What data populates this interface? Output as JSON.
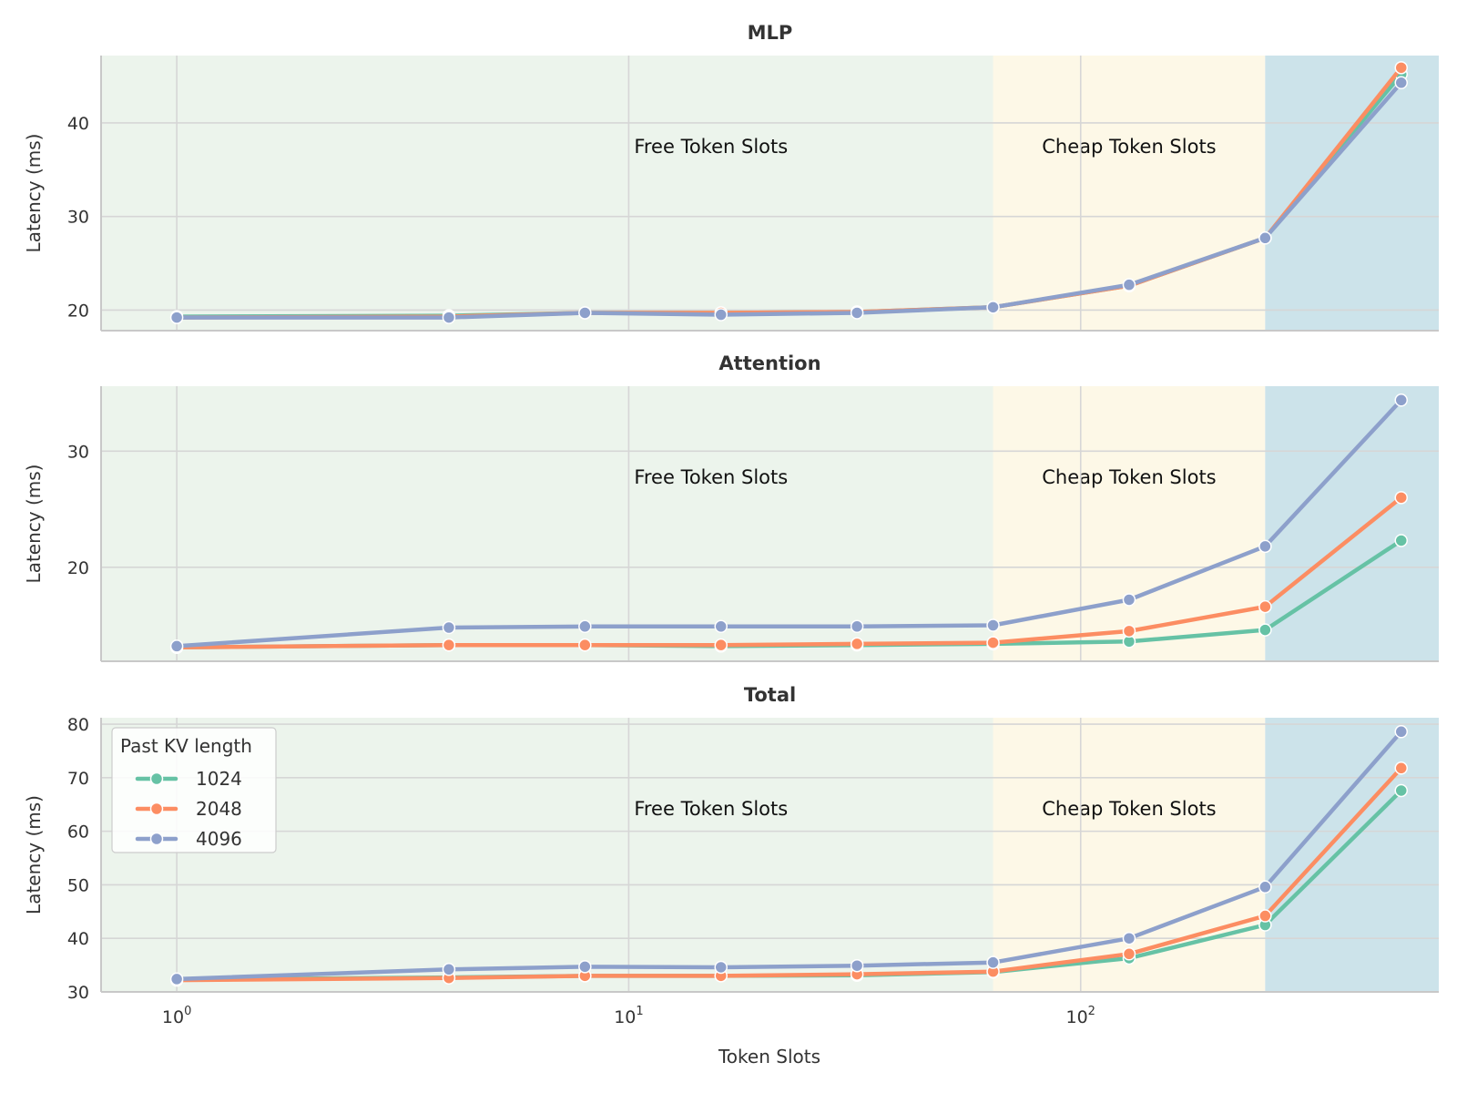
{
  "chart_data": {
    "type": "line",
    "xlabel": "Token Slots",
    "xscale": "log",
    "xlim": [
      0.68,
      620
    ],
    "x_ticks": [
      {
        "base": "10",
        "exp": "0",
        "value": 1
      },
      {
        "base": "10",
        "exp": "1",
        "value": 10
      },
      {
        "base": "10",
        "exp": "2",
        "value": 100
      }
    ],
    "x": [
      1,
      4,
      8,
      16,
      32,
      64,
      128,
      256,
      512
    ],
    "grid": true,
    "legend": {
      "title": "Past KV length",
      "placement": "top-left of Total panel"
    },
    "series_meta": [
      {
        "name": "1024",
        "color": "#66c2a5"
      },
      {
        "name": "2048",
        "color": "#fc8d62"
      },
      {
        "name": "4096",
        "color": "#8da0cb"
      }
    ],
    "regions": [
      {
        "label": "Free Token Slots",
        "from": 0.68,
        "to": 64,
        "color": "#ecf4ec"
      },
      {
        "label": "Cheap Token Slots",
        "from": 64,
        "to": 256,
        "color": "#fdf8e7"
      },
      {
        "label": "",
        "from": 256,
        "to": 620,
        "color": "#cce3ea"
      }
    ],
    "panels": [
      {
        "title": "MLP",
        "ylabel": "Latency (ms)",
        "ylim": [
          17.8,
          47.2
        ],
        "yticks": [
          20,
          30,
          40
        ],
        "series": [
          {
            "name": "1024",
            "values": [
              19.3,
              19.4,
              19.7,
              19.7,
              19.8,
              20.3,
              22.6,
              27.7,
              45.2
            ]
          },
          {
            "name": "2048",
            "values": [
              19.2,
              19.3,
              19.7,
              19.7,
              19.8,
              20.3,
              22.6,
              27.7,
              45.9
            ]
          },
          {
            "name": "4096",
            "values": [
              19.2,
              19.2,
              19.7,
              19.5,
              19.7,
              20.3,
              22.7,
              27.7,
              44.3
            ]
          }
        ]
      },
      {
        "title": "Attention",
        "ylabel": "Latency (ms)",
        "ylim": [
          11.9,
          35.6
        ],
        "yticks": [
          20,
          30
        ],
        "series": [
          {
            "name": "1024",
            "values": [
              13.1,
              13.3,
              13.3,
              13.2,
              13.3,
              13.4,
              13.6,
              14.6,
              22.3
            ]
          },
          {
            "name": "2048",
            "values": [
              13.1,
              13.3,
              13.3,
              13.3,
              13.4,
              13.5,
              14.5,
              16.6,
              26.0
            ]
          },
          {
            "name": "4096",
            "values": [
              13.2,
              14.8,
              14.9,
              14.9,
              14.9,
              15.0,
              17.2,
              21.8,
              34.4
            ]
          }
        ]
      },
      {
        "title": "Total",
        "ylabel": "Latency (ms)",
        "ylim": [
          30,
          81.2
        ],
        "yticks": [
          30,
          40,
          50,
          60,
          70,
          80
        ],
        "series": [
          {
            "name": "1024",
            "values": [
              32.3,
              32.7,
              33.0,
              33.0,
              33.1,
              33.7,
              36.3,
              42.5,
              67.6
            ]
          },
          {
            "name": "2048",
            "values": [
              32.2,
              32.6,
              33.0,
              33.0,
              33.3,
              33.8,
              37.1,
              44.2,
              71.8
            ]
          },
          {
            "name": "4096",
            "values": [
              32.4,
              34.2,
              34.7,
              34.6,
              34.9,
              35.5,
              40.0,
              49.6,
              78.6
            ]
          }
        ]
      }
    ]
  }
}
